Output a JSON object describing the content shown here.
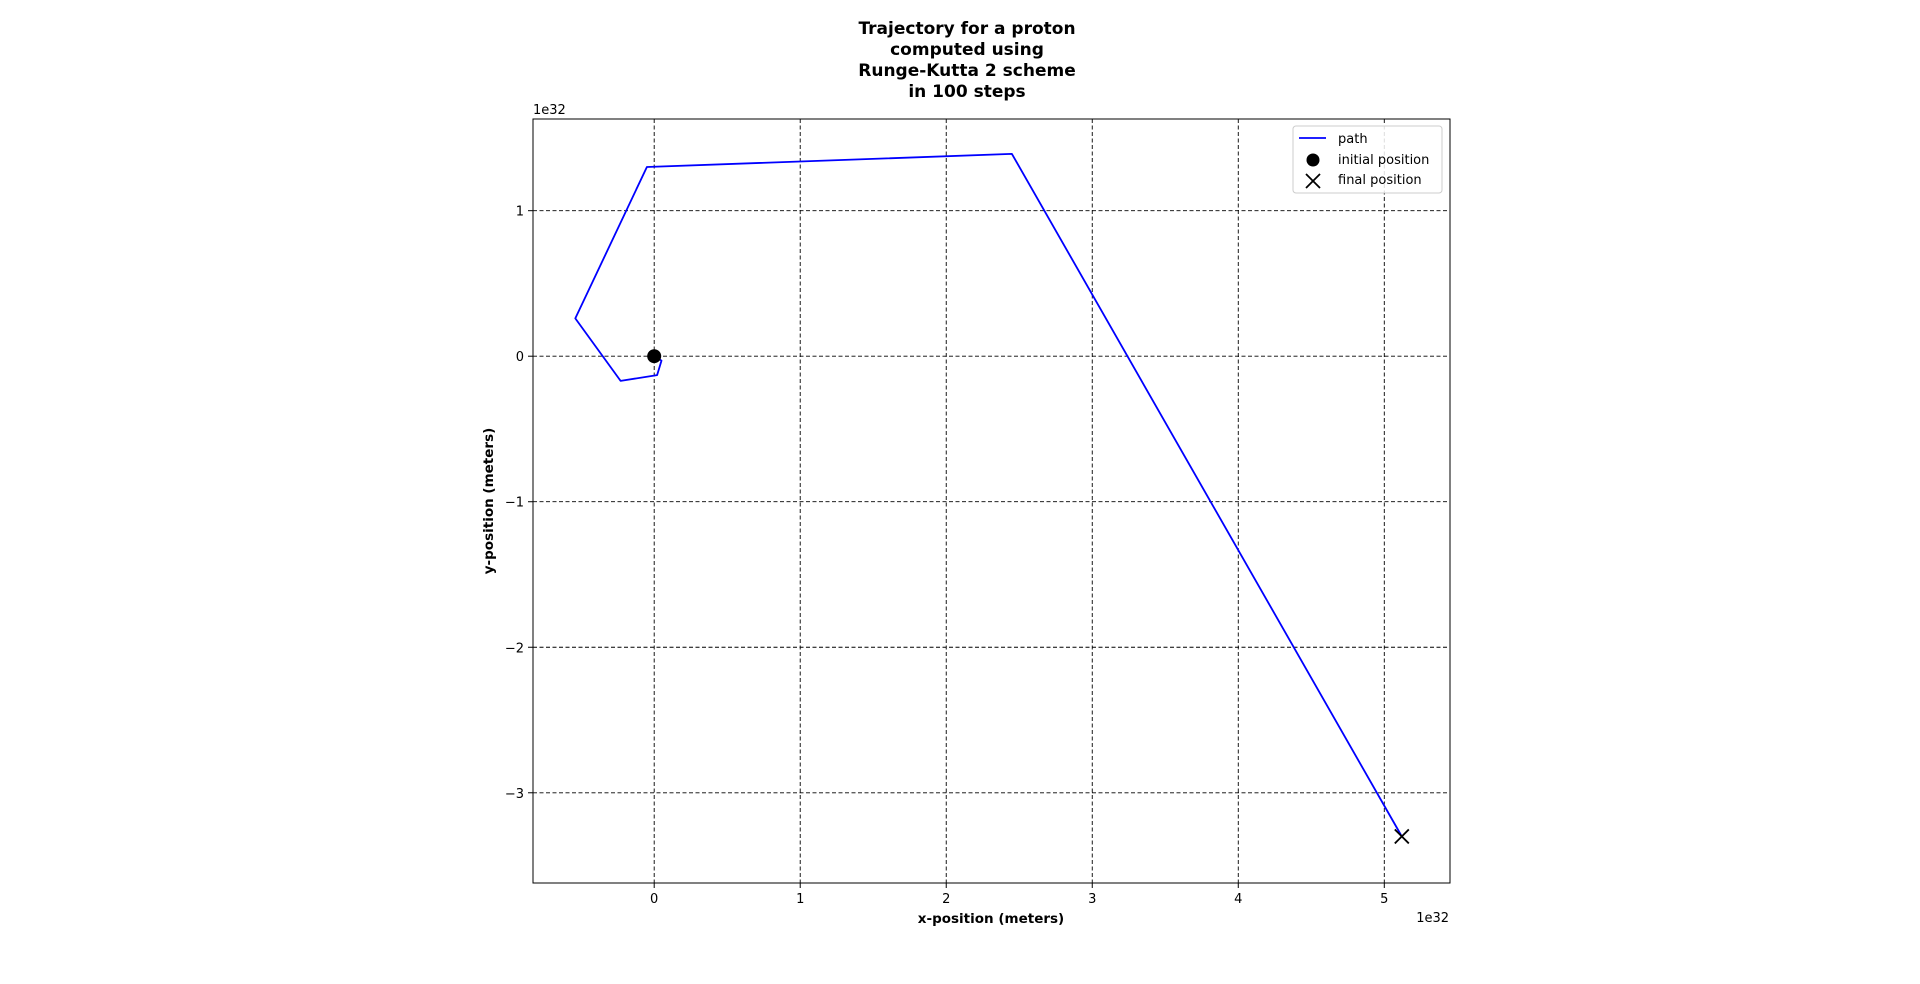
{
  "chart_data": {
    "type": "line",
    "title_lines": [
      "Trajectory for a proton",
      "computed using",
      "Runge-Kutta 2 scheme",
      "in 100 steps"
    ],
    "xlabel": "x-position (meters)",
    "ylabel": "y-position (meters)",
    "x_offset_text": "1e32",
    "y_offset_text": "1e32",
    "xlim": [
      -0.83,
      5.45
    ],
    "ylim": [
      -3.62,
      1.63
    ],
    "xticks": [
      0,
      1,
      2,
      3,
      4,
      5
    ],
    "yticks": [
      1,
      0,
      -1,
      -2,
      -3
    ],
    "xtick_labels": [
      "0",
      "1",
      "2",
      "3",
      "4",
      "5"
    ],
    "ytick_labels": [
      "1",
      "0",
      "−1",
      "−2",
      "−3"
    ],
    "grid": true,
    "legend_position": "top-right",
    "series": [
      {
        "name": "path",
        "color": "#0000ff",
        "x": [
          0.0,
          0.05,
          0.02,
          -0.23,
          -0.54,
          -0.05,
          2.45,
          5.12
        ],
        "y": [
          0.0,
          -0.03,
          -0.13,
          -0.17,
          0.26,
          1.3,
          1.39,
          -3.3
        ]
      }
    ],
    "markers": [
      {
        "name": "initial position",
        "shape": "circle",
        "color": "#000000",
        "x": 0.0,
        "y": 0.0
      },
      {
        "name": "final position",
        "shape": "x",
        "color": "#000000",
        "x": 5.12,
        "y": -3.3
      }
    ]
  }
}
